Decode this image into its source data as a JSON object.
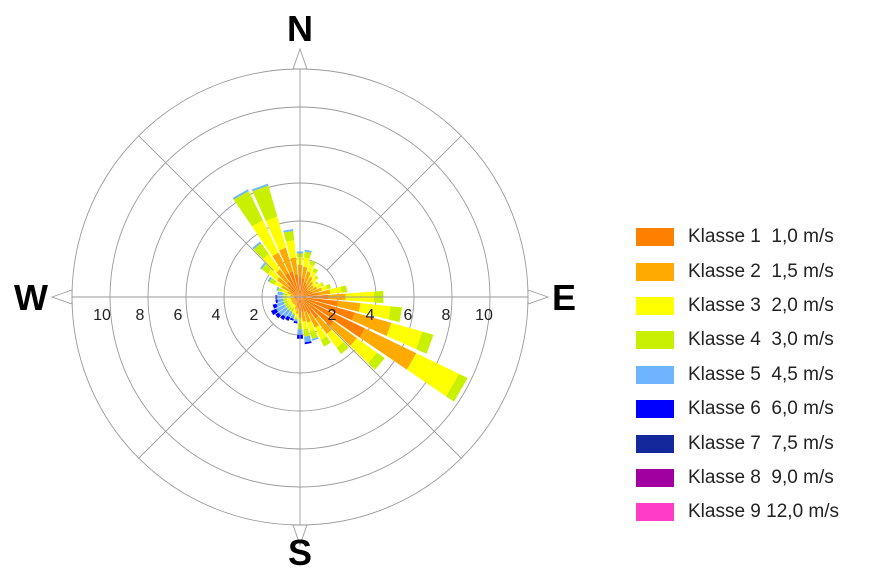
{
  "chart_data": {
    "type": "wind-rose",
    "compass": {
      "north": "N",
      "east": "E",
      "south": "S",
      "west": "W"
    },
    "radial_ticks": [
      "2",
      "4",
      "6",
      "8",
      "10"
    ],
    "rmax": 12,
    "grid": true,
    "legend_position": "right",
    "classes": [
      {
        "label": "Klasse 1  1,0 m/s",
        "color": "#FF7F00"
      },
      {
        "label": "Klasse 2  1,5 m/s",
        "color": "#FFAA00"
      },
      {
        "label": "Klasse 3  2,0 m/s",
        "color": "#FFFF00"
      },
      {
        "label": "Klasse 4  3,0 m/s",
        "color": "#C8F000"
      },
      {
        "label": "Klasse 5  4,5 m/s",
        "color": "#6EB4FF"
      },
      {
        "label": "Klasse 6  6,0 m/s",
        "color": "#0000FF"
      },
      {
        "label": "Klasse 7  7,5 m/s",
        "color": "#14289B"
      },
      {
        "label": "Klasse 8  9,0 m/s",
        "color": "#A000A0"
      },
      {
        "label": "Klasse 9 12,0 m/s",
        "color": "#FF3CC8"
      }
    ],
    "sector_width_deg": 10,
    "sectors": [
      {
        "dir": 0,
        "values": [
          1.1,
          0.6,
          0.4,
          0.2,
          0.1,
          0,
          0,
          0,
          0
        ]
      },
      {
        "dir": 10,
        "values": [
          1.0,
          0.6,
          0.5,
          0.3,
          0.1,
          0,
          0,
          0,
          0
        ]
      },
      {
        "dir": 20,
        "values": [
          0.8,
          0.6,
          0.4,
          0.2,
          0,
          0,
          0,
          0,
          0
        ]
      },
      {
        "dir": 30,
        "values": [
          0.7,
          0.5,
          0.3,
          0.2,
          0,
          0,
          0,
          0,
          0
        ]
      },
      {
        "dir": 40,
        "values": [
          0.6,
          0.4,
          0.3,
          0.1,
          0,
          0,
          0,
          0,
          0
        ]
      },
      {
        "dir": 50,
        "values": [
          0.5,
          0.4,
          0.2,
          0.1,
          0,
          0,
          0,
          0,
          0
        ]
      },
      {
        "dir": 60,
        "values": [
          0.6,
          0.4,
          0.3,
          0.1,
          0,
          0,
          0,
          0,
          0
        ]
      },
      {
        "dir": 70,
        "values": [
          0.7,
          0.5,
          0.3,
          0.2,
          0,
          0,
          0,
          0,
          0
        ]
      },
      {
        "dir": 80,
        "values": [
          1.0,
          0.6,
          0.6,
          0.3,
          0,
          0,
          0,
          0,
          0
        ]
      },
      {
        "dir": 90,
        "values": [
          1.5,
          0.9,
          1.5,
          0.5,
          0,
          0,
          0,
          0,
          0
        ]
      },
      {
        "dir": 100,
        "values": [
          2.0,
          1.2,
          1.6,
          0.6,
          0,
          0,
          0,
          0,
          0
        ]
      },
      {
        "dir": 110,
        "values": [
          3.0,
          2.0,
          1.7,
          0.6,
          0,
          0,
          0,
          0,
          0
        ]
      },
      {
        "dir": 120,
        "values": [
          3.8,
          3.0,
          2.5,
          0.5,
          0,
          0,
          0,
          0,
          0
        ]
      },
      {
        "dir": 130,
        "values": [
          2.2,
          1.5,
          1.3,
          0.5,
          0,
          0,
          0,
          0,
          0
        ]
      },
      {
        "dir": 140,
        "values": [
          1.4,
          1.0,
          0.9,
          0.4,
          0,
          0,
          0,
          0,
          0
        ]
      },
      {
        "dir": 150,
        "values": [
          1.0,
          0.8,
          0.7,
          0.4,
          0,
          0,
          0,
          0,
          0
        ]
      },
      {
        "dir": 160,
        "values": [
          0.8,
          0.6,
          0.5,
          0.4,
          0.1,
          0,
          0,
          0,
          0
        ]
      },
      {
        "dir": 170,
        "values": [
          0.8,
          0.5,
          0.4,
          0.4,
          0.3,
          0.1,
          0,
          0,
          0
        ]
      },
      {
        "dir": 180,
        "values": [
          0.7,
          0.4,
          0.3,
          0.3,
          0.3,
          0.2,
          0,
          0,
          0
        ]
      },
      {
        "dir": 190,
        "values": [
          0.6,
          0.3,
          0.2,
          0.1,
          0.1,
          0.1,
          0,
          0,
          0
        ]
      },
      {
        "dir": 200,
        "values": [
          0.5,
          0.2,
          0.2,
          0.1,
          0.2,
          0.1,
          0,
          0,
          0
        ]
      },
      {
        "dir": 210,
        "values": [
          0.3,
          0.2,
          0.2,
          0.2,
          0.3,
          0.2,
          0,
          0,
          0
        ]
      },
      {
        "dir": 220,
        "values": [
          0.3,
          0.2,
          0.2,
          0.2,
          0.4,
          0.2,
          0,
          0,
          0
        ]
      },
      {
        "dir": 230,
        "values": [
          0.3,
          0.2,
          0.2,
          0.2,
          0.5,
          0.2,
          0,
          0,
          0
        ]
      },
      {
        "dir": 240,
        "values": [
          0.3,
          0.2,
          0.2,
          0.2,
          0.5,
          0.3,
          0,
          0,
          0
        ]
      },
      {
        "dir": 250,
        "values": [
          0.3,
          0.2,
          0.2,
          0.2,
          0.4,
          0.2,
          0,
          0,
          0
        ]
      },
      {
        "dir": 260,
        "values": [
          0.3,
          0.2,
          0.2,
          0.2,
          0.3,
          0.1,
          0,
          0,
          0
        ]
      },
      {
        "dir": 270,
        "values": [
          0.3,
          0.2,
          0.2,
          0.2,
          0.3,
          0.1,
          0,
          0,
          0
        ]
      },
      {
        "dir": 280,
        "values": [
          0.3,
          0.2,
          0.2,
          0.2,
          0.3,
          0,
          0,
          0,
          0
        ]
      },
      {
        "dir": 290,
        "values": [
          0.4,
          0.3,
          0.3,
          0.2,
          0.1,
          0,
          0,
          0,
          0
        ]
      },
      {
        "dir": 300,
        "values": [
          0.6,
          0.5,
          0.4,
          0.3,
          0.1,
          0,
          0,
          0,
          0
        ]
      },
      {
        "dir": 310,
        "values": [
          0.8,
          0.7,
          0.6,
          0.4,
          0.1,
          0,
          0,
          0,
          0
        ]
      },
      {
        "dir": 320,
        "values": [
          1.0,
          0.8,
          1.0,
          0.7,
          0.1,
          0,
          0,
          0,
          0
        ]
      },
      {
        "dir": 330,
        "values": [
          1.4,
          1.2,
          1.9,
          1.7,
          0.1,
          0,
          0,
          0,
          0
        ]
      },
      {
        "dir": 340,
        "values": [
          1.4,
          1.3,
          1.7,
          1.7,
          0.1,
          0,
          0,
          0,
          0
        ]
      },
      {
        "dir": 350,
        "values": [
          1.2,
          0.9,
          0.9,
          0.5,
          0.1,
          0,
          0,
          0,
          0
        ]
      }
    ]
  }
}
